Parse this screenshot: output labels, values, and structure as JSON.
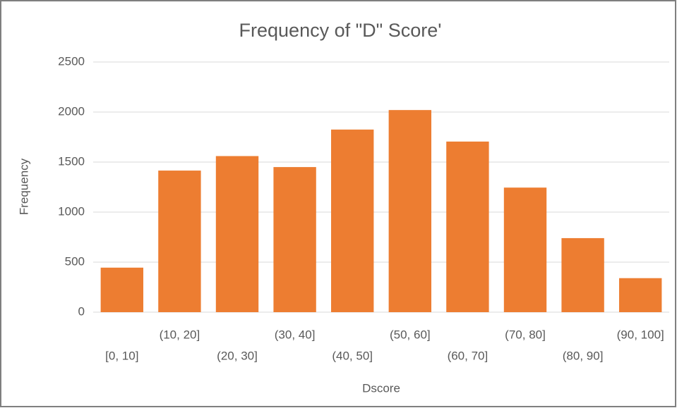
{
  "chart_data": {
    "type": "bar",
    "title": "Frequency  of \"D\" Score'",
    "x_label": "Dscore",
    "y_label": "Frequency",
    "categories": [
      "[0, 10]",
      "(10, 20]",
      "(20, 30]",
      "(30, 40]",
      "(40, 50]",
      "(50, 60]",
      "(60, 70]",
      "(70, 80]",
      "(80, 90]",
      "(90, 100]"
    ],
    "values": [
      445,
      1415,
      1560,
      1450,
      1825,
      2020,
      1705,
      1245,
      740,
      340
    ],
    "color": "#ed7d31",
    "ylim": [
      0,
      2500
    ],
    "yticks": [
      0,
      500,
      1000,
      1500,
      2000,
      2500
    ],
    "grid": true
  }
}
